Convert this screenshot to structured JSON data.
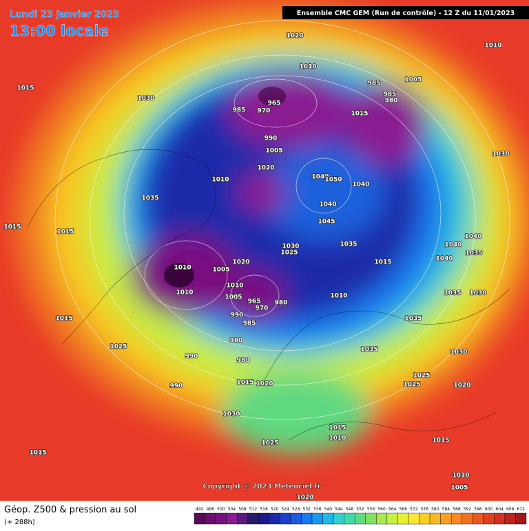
{
  "header": {
    "date": "Lundi 23 janvier 2023",
    "time": "13:00 locale",
    "model": "Ensemble CMC GEM  (Run de contrôle)  -  12 Z du 11/01/2023"
  },
  "map": {
    "pressure_labels": [
      1020,
      1010,
      1010,
      1015,
      1030,
      985,
      1005,
      985,
      980,
      965,
      985,
      970,
      1015,
      990,
      1005,
      1020,
      1010,
      1040,
      1050,
      1040,
      1030,
      1035,
      1040,
      1015,
      1015,
      1045,
      1035,
      1030,
      1025,
      1015,
      1040,
      1040,
      1035,
      1040,
      1020,
      1010,
      1005,
      1010,
      1010,
      1005,
      965,
      970,
      980,
      1010,
      1035,
      1030,
      990,
      1015,
      985,
      1035,
      980,
      1025,
      1035,
      1030,
      990,
      980,
      1015,
      1020,
      1025,
      1025,
      1020,
      990,
      1030,
      1015,
      1010,
      1025,
      1015,
      1015,
      1010,
      1005,
      1020
    ],
    "copyright": "Copyright © 2023 Meteociel.fr"
  },
  "footer": {
    "title": "Géop. Z500 & pression au sol",
    "lead": "(+ 288h)",
    "scale": [
      492,
      496,
      500,
      504,
      508,
      512,
      516,
      520,
      524,
      528,
      532,
      536,
      540,
      544,
      548,
      552,
      556,
      560,
      564,
      568,
      572,
      576,
      580,
      584,
      588,
      592,
      596,
      600,
      604,
      608,
      612
    ],
    "colors": [
      "#5a0a5a",
      "#6a0d6e",
      "#7a1080",
      "#8a1a92",
      "#5a1a80",
      "#2a1a6a",
      "#1a1a8a",
      "#1a2aaa",
      "#1a40cc",
      "#1a5ae0",
      "#1a78f0",
      "#1a98f0",
      "#20b8e8",
      "#30d0d0",
      "#40d8a8",
      "#60dc80",
      "#80e060",
      "#a8e850",
      "#c8f040",
      "#e8f030",
      "#f8e830",
      "#f8d020",
      "#f8b820",
      "#f8a020",
      "#f88820",
      "#f07020",
      "#e85820",
      "#e04020",
      "#d83020",
      "#c02020",
      "#a01818"
    ]
  }
}
